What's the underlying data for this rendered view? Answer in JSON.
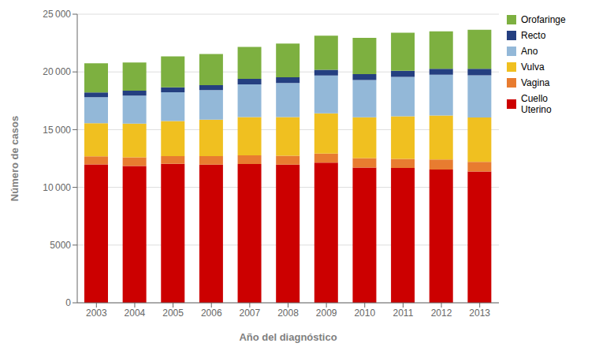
{
  "chart_data": {
    "type": "bar",
    "stacked": true,
    "categories": [
      "2003",
      "2004",
      "2005",
      "2006",
      "2007",
      "2008",
      "2009",
      "2010",
      "2011",
      "2012",
      "2013"
    ],
    "series": [
      {
        "name": "Cuello\nUterino",
        "color": "#CC0000",
        "values": [
          11994,
          11845,
          12036,
          11969,
          12021,
          11974,
          12134,
          11723,
          11680,
          11552,
          11376
        ]
      },
      {
        "name": "Vagina",
        "color": "#E87C30",
        "values": [
          699,
          754,
          671,
          738,
          753,
          770,
          798,
          818,
          779,
          865,
          835
        ]
      },
      {
        "name": "Vulva",
        "color": "#F0C020",
        "values": [
          2866,
          2929,
          3044,
          3154,
          3314,
          3344,
          3482,
          3523,
          3700,
          3804,
          3844
        ]
      },
      {
        "name": "Ano",
        "color": "#93B8D8",
        "values": [
          2250,
          2415,
          2490,
          2566,
          2841,
          2956,
          3269,
          3228,
          3403,
          3529,
          3653
        ]
      },
      {
        "name": "Recto",
        "color": "#243F80",
        "values": [
          412,
          439,
          429,
          434,
          470,
          493,
          498,
          524,
          536,
          521,
          562
        ]
      },
      {
        "name": "Orofaringe",
        "color": "#7DB040",
        "values": [
          2521,
          2434,
          2682,
          2687,
          2768,
          2918,
          2964,
          3130,
          3294,
          3247,
          3381
        ]
      }
    ],
    "xlabel": "Año del diagnóstico",
    "ylabel": "Número de casos",
    "ylim": [
      0,
      25000
    ],
    "yticks": [
      0,
      5000,
      {
        "value": 10000,
        "label": "10 000"
      },
      {
        "value": 15000,
        "label": "15 000"
      },
      {
        "value": 20000,
        "label": "20 000"
      },
      {
        "value": 25000,
        "label": "25 000"
      }
    ],
    "grid": true,
    "legend": "upper right"
  }
}
